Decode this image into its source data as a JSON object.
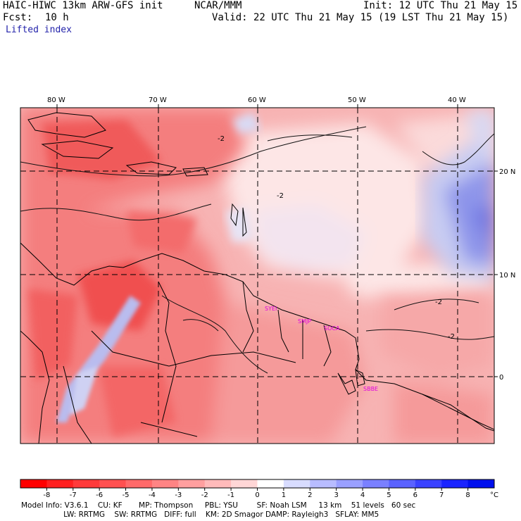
{
  "header": {
    "model_line": "HAIC-HIWC 13km ARW-GFS init",
    "org": "NCAR/MMM",
    "init": "Init: 12 UTC Thu 21 May 15",
    "fcst_label": "Fcst:",
    "fcst_value": "10 h",
    "valid": "Valid: 22 UTC Thu 21 May 15 (19 LST Thu 21 May 15)",
    "field": "Lifted index"
  },
  "map": {
    "lon_labels": [
      "80 W",
      "70 W",
      "60 W",
      "50 W",
      "40 W"
    ],
    "lat_labels": [
      "20 N",
      "10 N",
      "0"
    ],
    "stations": [
      "SYEI",
      "SMJP",
      "SOCA",
      "SBBE"
    ],
    "contour_label": "-2",
    "colors": {
      "strong_neg": "#f03c3c",
      "mid_neg": "#f47e7e",
      "light_neg": "#f7b3b3",
      "near_zero": "#fde6e6",
      "light_pos": "#c8ccf2",
      "mid_pos": "#8e95ea",
      "station": "#e000e0"
    }
  },
  "colorbar": {
    "ticks": [
      "-8",
      "-7",
      "-6",
      "-5",
      "-4",
      "-3",
      "-2",
      "-1",
      "0",
      "1",
      "2",
      "3",
      "4",
      "5",
      "6",
      "7",
      "8"
    ],
    "unit": "°C",
    "colors": [
      "#ff0000",
      "#ff2020",
      "#ff3a3a",
      "#ff5050",
      "#ff6a6a",
      "#ff8484",
      "#ff9f9f",
      "#ffbaba",
      "#ffd6d6",
      "#ffffff",
      "#d8dcff",
      "#b8bcff",
      "#9aa0ff",
      "#7a80ff",
      "#5a62ff",
      "#3a42ff",
      "#1a24ff",
      "#0010ee"
    ]
  },
  "footer": {
    "line1": "Model Info: V3.6.1    CU: KF       MP: Thompson     PBL: YSU        SF: Noah LSM     13 km    51 levels   60 sec",
    "line2": "                  LW: RRTMG    SW: RRTMG   DIFF: full    KM: 2D Smagor DAMP: Rayleigh3   SFLAY: MM5"
  }
}
